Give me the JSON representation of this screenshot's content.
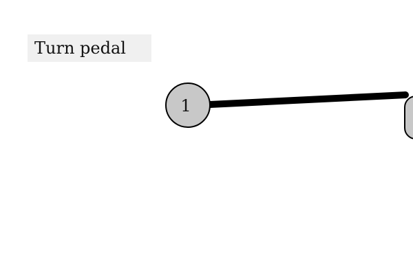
{
  "instruction": {
    "label": "Turn pedal"
  },
  "nodes": [
    {
      "id": "1",
      "label": "1"
    },
    {
      "id": "2",
      "label": ""
    }
  ],
  "link": {
    "from": "1",
    "to": "2"
  },
  "colors": {
    "node_fill": "#c8c8c8",
    "node_stroke": "#000000",
    "link": "#000000",
    "label_bg": "#f0f0f0"
  }
}
